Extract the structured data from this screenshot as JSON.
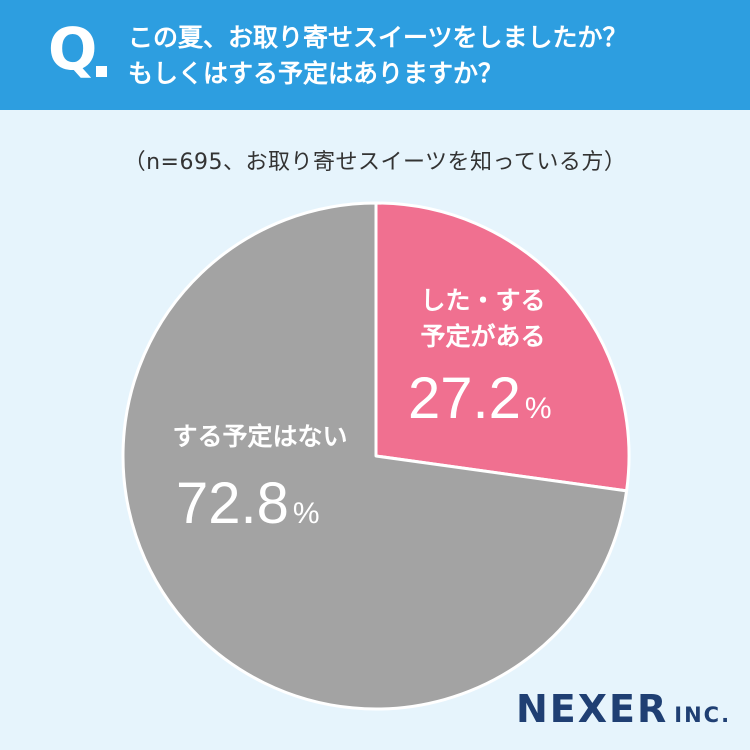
{
  "header": {
    "q_mark": "Q",
    "line1": "この夏、お取り寄せスイーツをしましたか？",
    "line2": "もしくはする予定はありますか？"
  },
  "subtitle": "（n=695、お取り寄せスイーツを知っている方）",
  "colors": {
    "header": "#2d9ee0",
    "background": "#e6f4fc",
    "yes": "#f07090",
    "no": "#a3a3a3"
  },
  "chart_data": {
    "type": "pie",
    "title": "",
    "slices": [
      {
        "label_line1": "した・する",
        "label_line2": "予定がある",
        "value": 27.2,
        "value_text": "27.2",
        "unit": "%",
        "color": "#f07090"
      },
      {
        "label_line1": "する予定はない",
        "label_line2": "",
        "value": 72.8,
        "value_text": "72.8",
        "unit": "%",
        "color": "#a3a3a3"
      }
    ]
  },
  "logo": {
    "main": "NEXER",
    "suffix": "INC."
  }
}
